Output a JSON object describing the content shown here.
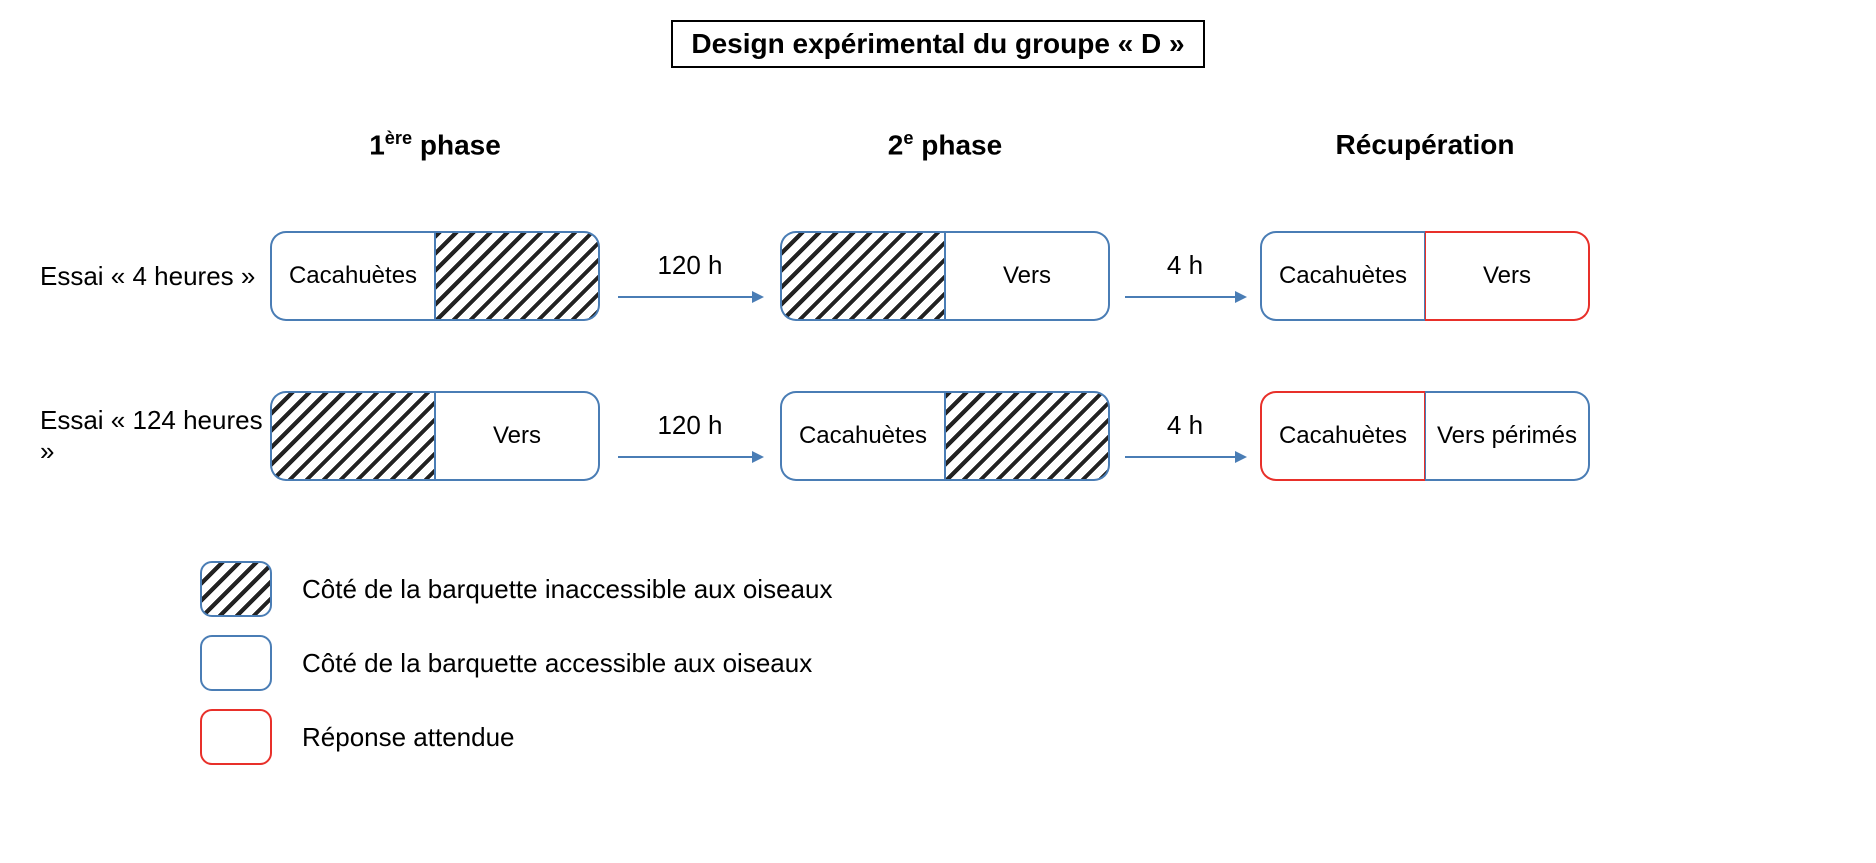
{
  "title": "Design expérimental du groupe « D »",
  "colors": {
    "blue_border": "#4a7db5",
    "red_border": "#e8302a",
    "arrow": "#4a7db5",
    "black": "#000000"
  },
  "columns": {
    "phase1": {
      "label": "1",
      "sup": "ère",
      "suffix": " phase"
    },
    "phase2": {
      "label": "2",
      "sup": "e",
      "suffix": " phase"
    },
    "recup": "Récupération"
  },
  "arrows": {
    "after_phase1": "120 h",
    "after_phase2": "4 h"
  },
  "rows": [
    {
      "label": "Essai « 4 heures »",
      "phase1": {
        "left": {
          "text": "Cacahuètes",
          "hatched": false
        },
        "right": {
          "text": "",
          "hatched": true
        }
      },
      "phase2": {
        "left": {
          "text": "",
          "hatched": true
        },
        "right": {
          "text": "Vers",
          "hatched": false
        }
      },
      "recup": {
        "left": {
          "text": "Cacahuètes",
          "border": "blue"
        },
        "right": {
          "text": "Vers",
          "border": "red"
        }
      }
    },
    {
      "label": "Essai « 124 heures »",
      "phase1": {
        "left": {
          "text": "",
          "hatched": true
        },
        "right": {
          "text": "Vers",
          "hatched": false
        }
      },
      "phase2": {
        "left": {
          "text": "Cacahuètes",
          "hatched": false
        },
        "right": {
          "text": "",
          "hatched": true
        }
      },
      "recup": {
        "left": {
          "text": "Cacahuètes",
          "border": "red"
        },
        "right": {
          "text": "Vers périmés",
          "border": "blue"
        }
      }
    }
  ],
  "legend": [
    {
      "swatch": "hatched",
      "border": "blue",
      "text": "Côté de la barquette inaccessible aux oiseaux"
    },
    {
      "swatch": "plain",
      "border": "blue",
      "text": "Côté de la barquette accessible aux oiseaux"
    },
    {
      "swatch": "plain",
      "border": "red",
      "text": "Réponse attendue"
    }
  ]
}
